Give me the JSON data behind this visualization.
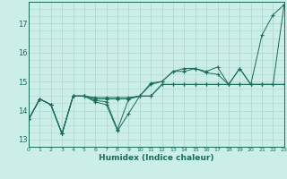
{
  "xlabel": "Humidex (Indice chaleur)",
  "background_color": "#cceee8",
  "grid_color": "#b0d8d0",
  "line_color": "#1a6b5a",
  "x_data": [
    0,
    1,
    2,
    3,
    4,
    5,
    6,
    7,
    8,
    9,
    10,
    11,
    12,
    13,
    14,
    15,
    16,
    17,
    18,
    19,
    20,
    21,
    22,
    23
  ],
  "series": [
    [
      13.7,
      14.4,
      14.2,
      13.2,
      14.5,
      14.5,
      14.3,
      14.2,
      13.3,
      13.9,
      14.5,
      14.95,
      15.0,
      15.35,
      15.35,
      15.45,
      15.35,
      15.5,
      14.9,
      15.45,
      14.9,
      16.6,
      17.3,
      17.65
    ],
    [
      13.7,
      14.4,
      14.2,
      13.2,
      14.5,
      14.5,
      14.35,
      14.3,
      13.35,
      14.4,
      14.5,
      14.9,
      15.0,
      15.35,
      15.45,
      15.45,
      15.3,
      15.25,
      14.9,
      15.45,
      14.9,
      14.9,
      14.9,
      17.65
    ],
    [
      13.7,
      14.4,
      14.2,
      13.2,
      14.5,
      14.5,
      14.4,
      14.4,
      14.4,
      14.4,
      14.5,
      14.5,
      14.9,
      14.9,
      14.9,
      14.9,
      14.9,
      14.9,
      14.9,
      14.9,
      14.9,
      14.9,
      14.9,
      14.9
    ],
    [
      13.7,
      14.4,
      14.2,
      13.2,
      14.5,
      14.5,
      14.45,
      14.45,
      14.45,
      14.45,
      14.5,
      14.5,
      14.9,
      14.9,
      14.9,
      14.9,
      14.9,
      14.9,
      14.9,
      14.9,
      14.9,
      14.9,
      14.9,
      14.9
    ]
  ],
  "ylim": [
    12.75,
    17.75
  ],
  "xlim": [
    0,
    23
  ],
  "yticks": [
    13,
    14,
    15,
    16,
    17
  ],
  "xticks": [
    0,
    1,
    2,
    3,
    4,
    5,
    6,
    7,
    8,
    9,
    10,
    11,
    12,
    13,
    14,
    15,
    16,
    17,
    18,
    19,
    20,
    21,
    22,
    23
  ]
}
